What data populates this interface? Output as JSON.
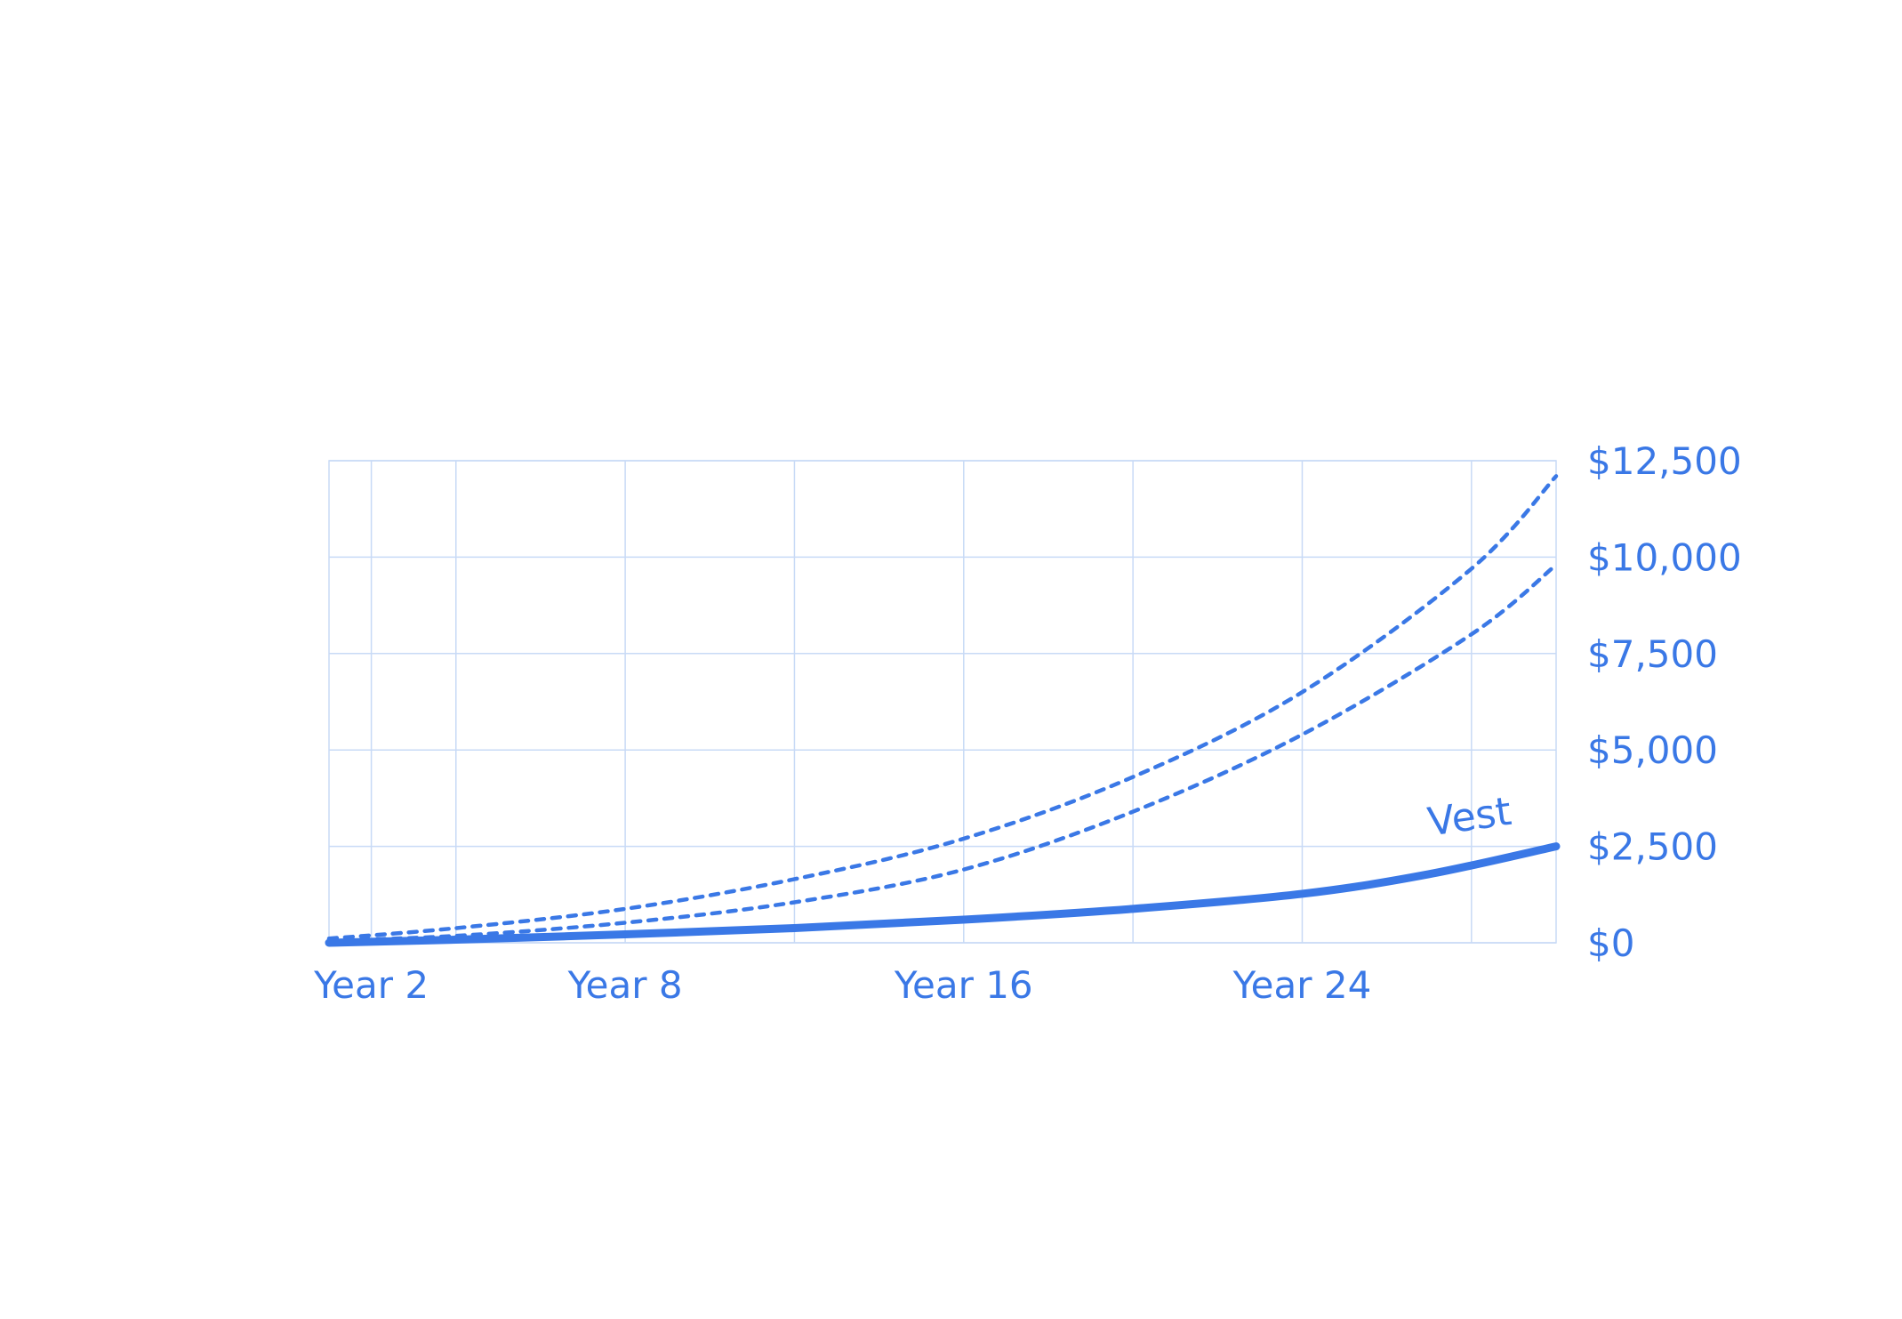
{
  "chart_data": {
    "type": "line",
    "title": "",
    "xlabel": "",
    "ylabel": "",
    "x_tick_labels": [
      "Year 2",
      "Year 8",
      "Year 16",
      "Year 24"
    ],
    "x_tick_values": [
      2,
      8,
      16,
      24
    ],
    "xlim": [
      1,
      30
    ],
    "y_tick_labels": [
      "$0",
      "$2,500",
      "$5,000",
      "$7,500",
      "$10,000",
      "$12,500"
    ],
    "y_tick_values": [
      0,
      2500,
      5000,
      7500,
      10000,
      12500
    ],
    "ylim": [
      0,
      12500
    ],
    "grid": true,
    "y_axis_side": "right",
    "accent_color": "#3a78e6",
    "grid_color": "#c8daf6",
    "series": [
      {
        "name": "Vest",
        "style": "solid",
        "x": [
          1,
          4,
          8,
          12,
          16,
          20,
          24,
          27,
          30
        ],
        "y": [
          0,
          80,
          220,
          380,
          600,
          880,
          1270,
          1780,
          2500
        ]
      },
      {
        "style": "dotted",
        "x": [
          1,
          4,
          8,
          12,
          16,
          20,
          24,
          28,
          30
        ],
        "y": [
          60,
          180,
          520,
          1050,
          1900,
          3400,
          5400,
          8000,
          9800
        ]
      },
      {
        "style": "dotted",
        "x": [
          1,
          4,
          8,
          12,
          16,
          20,
          24,
          28,
          30
        ],
        "y": [
          110,
          380,
          880,
          1650,
          2700,
          4300,
          6500,
          9700,
          12100
        ]
      }
    ]
  }
}
